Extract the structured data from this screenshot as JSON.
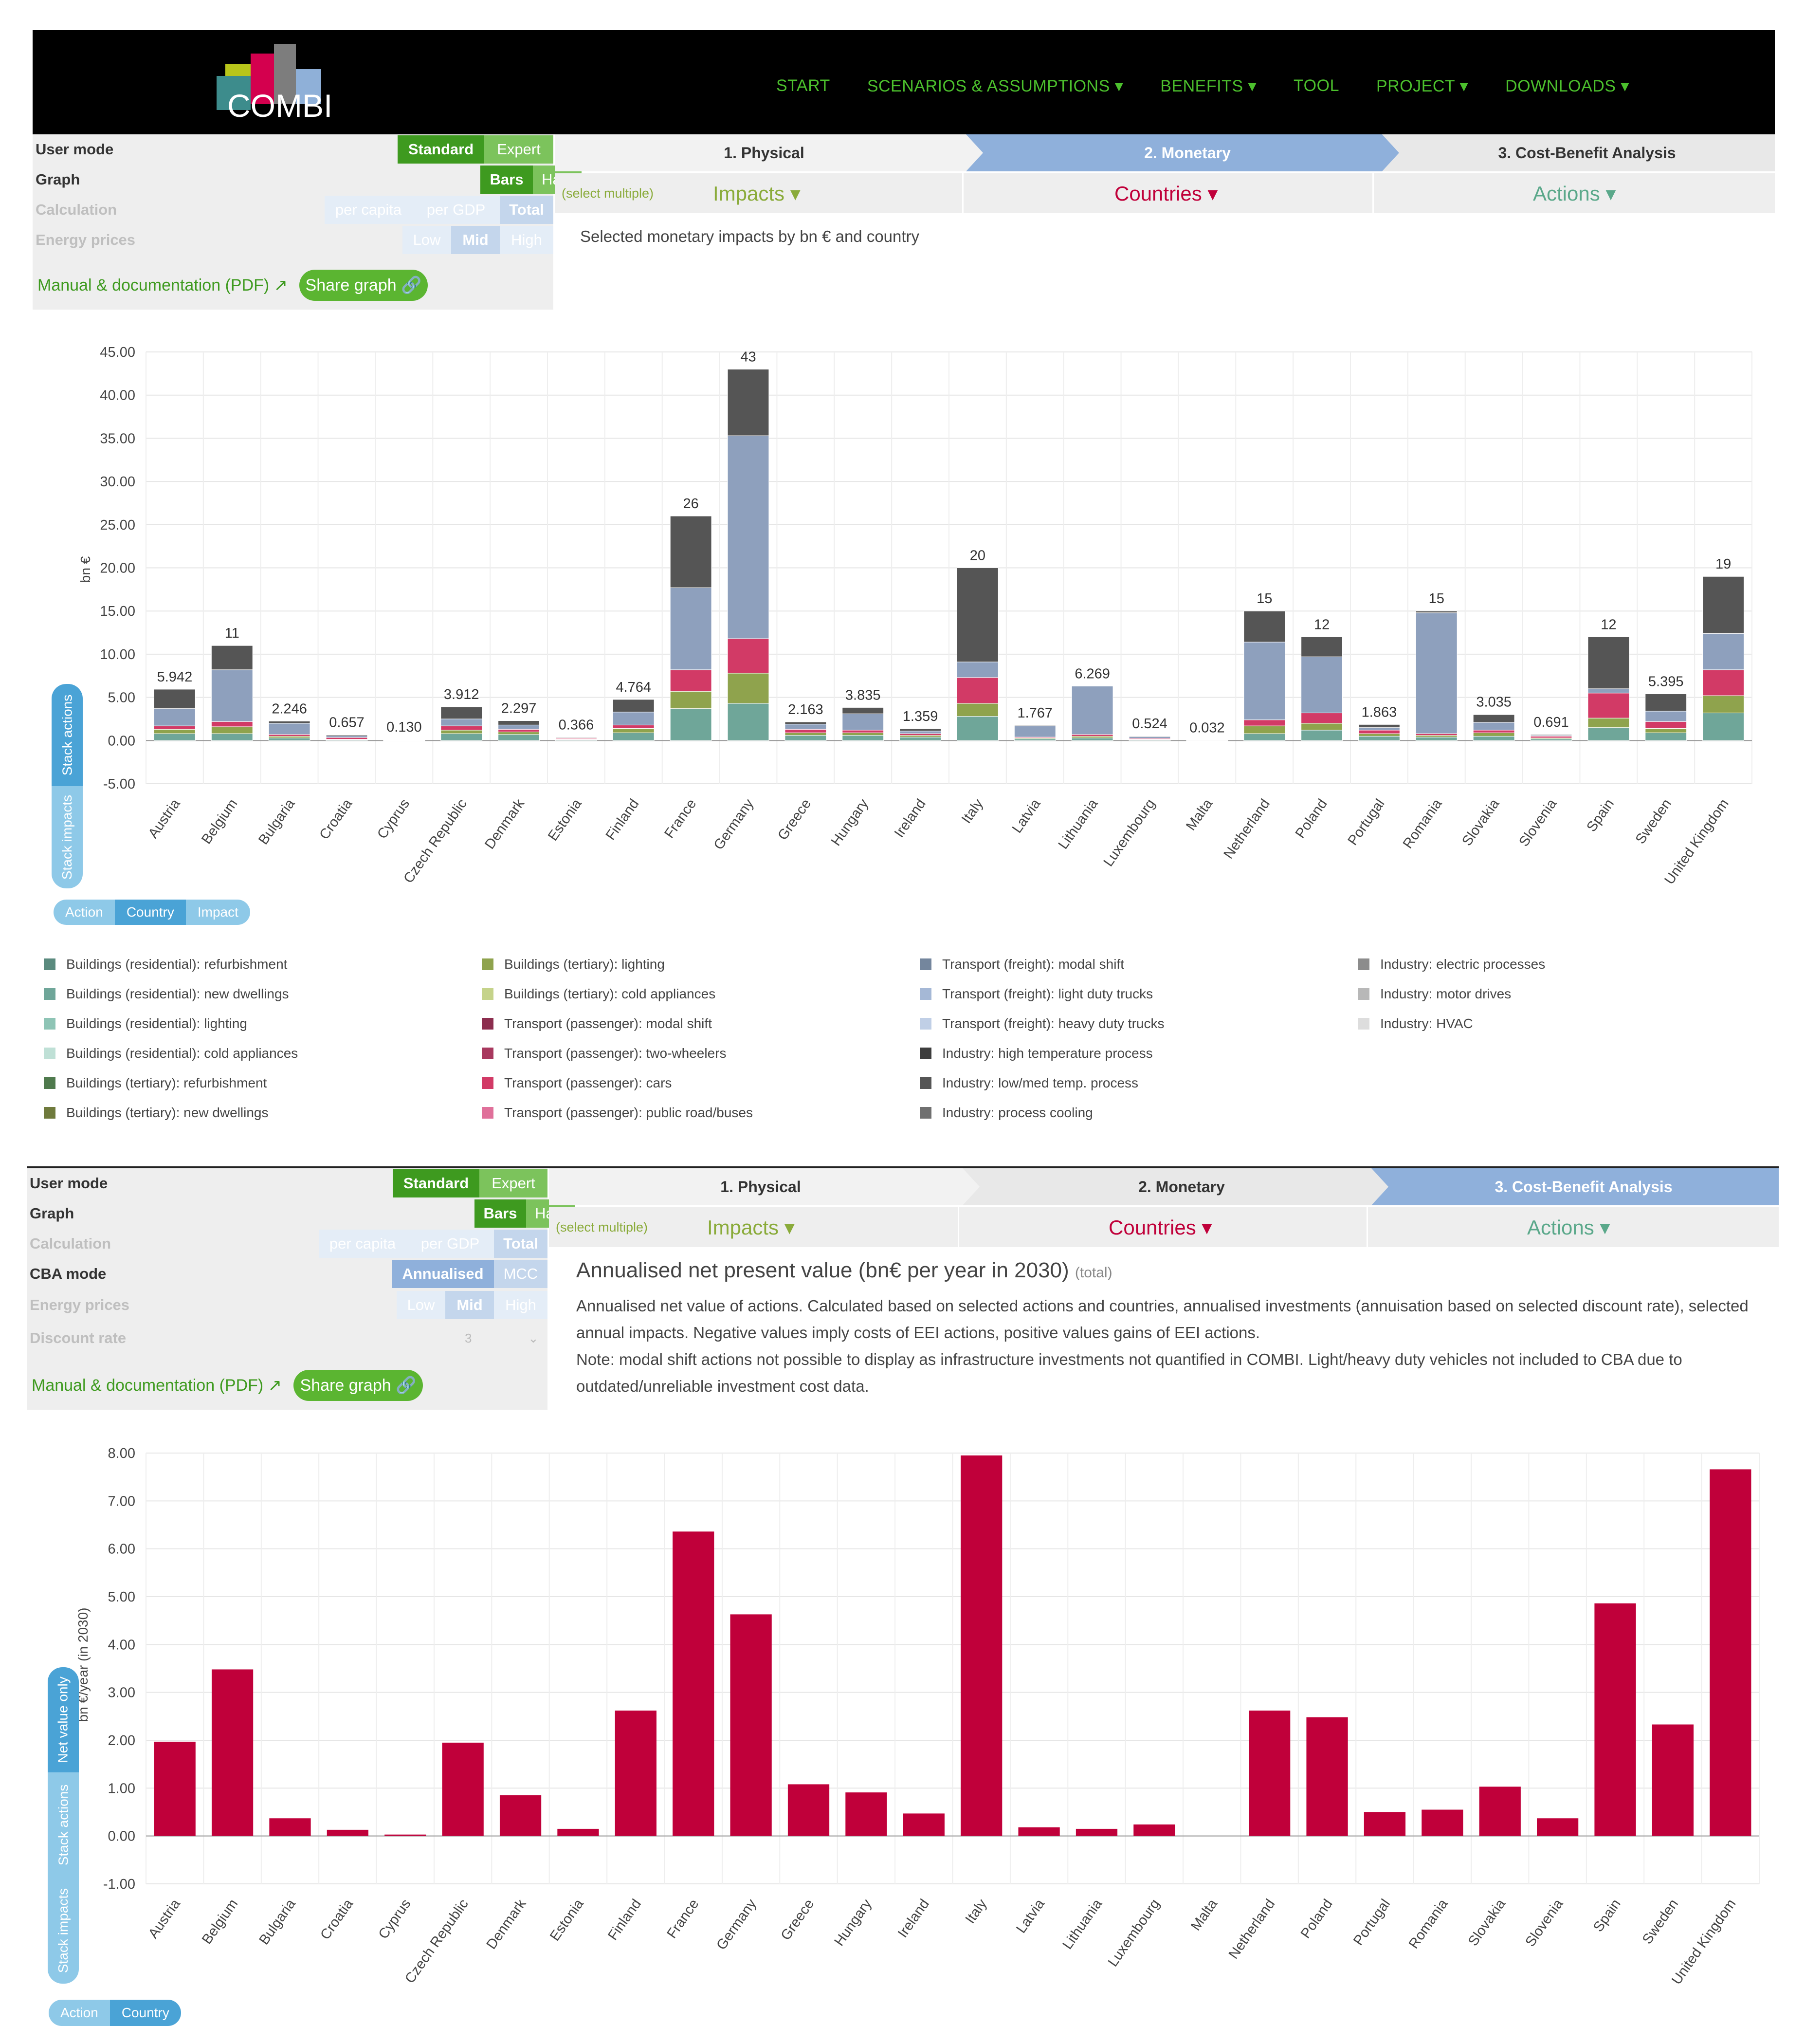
{
  "nav": {
    "logo": "COMBI",
    "menu": [
      "START",
      "SCENARIOS & ASSUMPTIONS ▾",
      "BENEFITS ▾",
      "TOOL",
      "PROJECT ▾",
      "DOWNLOADS ▾"
    ]
  },
  "panel1": {
    "user_mode_label": "User mode",
    "standard": "Standard",
    "expert": "Expert",
    "graph_label": "Graph",
    "bars": "Bars",
    "halo": "Halo",
    "calculation_label": "Calculation",
    "per_capita": "per capita",
    "per_gdp": "per GDP",
    "total": "Total",
    "energy_label": "Energy prices",
    "low": "Low",
    "mid": "Mid",
    "high": "High",
    "manual": "Manual & documentation (PDF)",
    "share": "Share graph",
    "tabs": [
      "1. Physical",
      "2. Monetary",
      "3. Cost-Benefit Analysis"
    ],
    "select_multiple": "(select multiple)",
    "impacts": "Impacts ▾",
    "countries": "Countries ▾",
    "actions": "Actions ▾",
    "subtitle": "Selected monetary impacts by bn € and country",
    "ylabel": "bn €",
    "stack_actions": "Stack actions",
    "stack_impacts": "Stack impacts",
    "group": [
      "Action",
      "Country",
      "Impact"
    ]
  },
  "legend": [
    [
      "Buildings (residential): refurbishment",
      "Buildings (residential): new dwellings",
      "Buildings (residential): lighting",
      "Buildings (residential): cold appliances",
      "Buildings (tertiary): refurbishment",
      "Buildings (tertiary): new dwellings"
    ],
    [
      "Buildings (tertiary): lighting",
      "Buildings (tertiary): cold appliances",
      "Transport (passenger): modal shift",
      "Transport (passenger): two-wheelers",
      "Transport (passenger): cars",
      "Transport (passenger): public road/buses"
    ],
    [
      "Transport (freight): modal shift",
      "Transport (freight): light duty trucks",
      "Transport (freight): heavy duty trucks",
      "Industry: high temperature process",
      "Industry: low/med temp. process",
      "Industry: process cooling"
    ],
    [
      "Industry: electric processes",
      "Industry: motor drives",
      "Industry: HVAC"
    ]
  ],
  "legend_colors": [
    [
      "#5a8a7e",
      "#6fa699",
      "#8ec4b5",
      "#bfe0d6",
      "#4f7a4d",
      "#6f7a3c"
    ],
    [
      "#8fa34d",
      "#c5d38a",
      "#8c2d4e",
      "#a8385e",
      "#d23a66",
      "#e0709a"
    ],
    [
      "#74869d",
      "#a5b8d6",
      "#c0cfe6",
      "#3d3d3d",
      "#555555",
      "#707070"
    ],
    [
      "#8c8c8c",
      "#b8b8b8",
      "#dddddd"
    ]
  ],
  "panel2": {
    "user_mode_label": "User mode",
    "standard": "Standard",
    "expert": "Expert",
    "graph_label": "Graph",
    "bars": "Bars",
    "halo": "Halo",
    "calculation_label": "Calculation",
    "per_capita": "per capita",
    "per_gdp": "per GDP",
    "total": "Total",
    "cba_label": "CBA mode",
    "annualised": "Annualised",
    "mcc": "MCC",
    "energy_label": "Energy prices",
    "low": "Low",
    "mid": "Mid",
    "high": "High",
    "discount_label": "Discount rate",
    "discount_value": "3",
    "manual": "Manual & documentation (PDF)",
    "share": "Share graph",
    "tabs": [
      "1. Physical",
      "2. Monetary",
      "3. Cost-Benefit Analysis"
    ],
    "select_multiple": "(select multiple)",
    "impacts": "Impacts ▾",
    "countries": "Countries ▾",
    "actions": "Actions ▾",
    "title": "Annualised net present value (bn€ per year in 2030)",
    "title_suffix": "(total)",
    "desc1": "Annualised net value of actions. Calculated based on selected actions and countries, annualised investments (annuisation based on selected discount rate), selected annual impacts. Negative values imply costs of EEI actions, positive values gains of EEI actions.",
    "desc2": "Note: modal shift actions not possible to display as infrastructure investments not quantified in COMBI. Light/heavy duty vehicles not included to CBA due to outdated/unreliable investment cost data.",
    "ylabel": "bn €/year (in 2030)",
    "net_value_only": "Net value only",
    "stack_actions": "Stack actions",
    "stack_impacts": "Stack impacts",
    "group": [
      "Action",
      "Country"
    ]
  },
  "chart_data": [
    {
      "type": "bar",
      "stacked": true,
      "title": "Selected monetary impacts by bn € and country",
      "ylabel": "bn €",
      "ylim": [
        -5,
        45
      ],
      "yticks": [
        "45.00",
        "40.00",
        "35.00",
        "30.00",
        "25.00",
        "20.00",
        "15.00",
        "10.00",
        "5.00",
        "0.00",
        "-5.00"
      ],
      "categories": [
        "Austria",
        "Belgium",
        "Bulgaria",
        "Croatia",
        "Cyprus",
        "Czech Republic",
        "Denmark",
        "Estonia",
        "Finland",
        "France",
        "Germany",
        "Greece",
        "Hungary",
        "Ireland",
        "Italy",
        "Latvia",
        "Lithuania",
        "Luxembourg",
        "Malta",
        "Netherland",
        "Poland",
        "Portugal",
        "Romania",
        "Slovakia",
        "Slovenia",
        "Spain",
        "Sweden",
        "United Kingdom"
      ],
      "totals": [
        5.942,
        11,
        2.246,
        0.657,
        0.13,
        3.912,
        2.297,
        0.366,
        4.764,
        26,
        43,
        2.163,
        3.835,
        1.359,
        20,
        1.767,
        6.269,
        0.524,
        0.032,
        15,
        12,
        1.863,
        15,
        3.035,
        0.691,
        12,
        5.395,
        19
      ],
      "total_labels": [
        "5.942",
        "11",
        "2.246",
        "0.657",
        "0.130",
        "3.912",
        "2.297",
        "0.366",
        "4.764",
        "26",
        "43",
        "2.163",
        "3.835",
        "1.359",
        "20",
        "1.767",
        "6.269",
        "0.524",
        "0.032",
        "15",
        "12",
        "1.863",
        "15",
        "3.035",
        "0.691",
        "12",
        "5.395",
        "19"
      ],
      "series": [
        {
          "name": "Buildings (residential)",
          "values": [
            0.8,
            0.8,
            0.3,
            0.1,
            0.02,
            0.8,
            0.7,
            0.1,
            0.9,
            3.7,
            4.3,
            0.6,
            0.6,
            0.4,
            2.8,
            0.2,
            0.3,
            0.1,
            0.01,
            0.8,
            1.2,
            0.5,
            0.4,
            0.5,
            0.2,
            1.5,
            0.9,
            3.2
          ]
        },
        {
          "name": "Buildings (tertiary)",
          "values": [
            0.5,
            0.8,
            0.2,
            0.05,
            0.02,
            0.4,
            0.3,
            0.05,
            0.5,
            2.0,
            3.5,
            0.3,
            0.3,
            0.2,
            1.5,
            0.1,
            0.2,
            0.05,
            0.01,
            0.9,
            0.8,
            0.3,
            0.2,
            0.4,
            0.1,
            1.1,
            0.5,
            2.0
          ]
        },
        {
          "name": "Transport (passenger)",
          "values": [
            0.4,
            0.6,
            0.2,
            0.2,
            0.03,
            0.5,
            0.3,
            0.1,
            0.4,
            2.5,
            4.0,
            0.4,
            0.3,
            0.2,
            3.0,
            0.1,
            0.2,
            0.1,
            0.01,
            0.7,
            1.2,
            0.4,
            0.2,
            0.3,
            0.2,
            2.9,
            0.8,
            3.0
          ]
        },
        {
          "name": "Transport (freight)",
          "values": [
            2.0,
            6.0,
            1.3,
            0.2,
            0.03,
            0.8,
            0.5,
            0.05,
            1.5,
            9.5,
            23.5,
            0.6,
            1.9,
            0.3,
            1.8,
            1.3,
            5.6,
            0.2,
            0,
            9.0,
            6.5,
            0.3,
            14.0,
            0.9,
            0.1,
            0.5,
            1.2,
            4.2
          ]
        },
        {
          "name": "Industry",
          "values": [
            2.24,
            2.8,
            0.25,
            0.11,
            0.02,
            1.41,
            0.5,
            0.07,
            1.46,
            8.3,
            7.7,
            0.26,
            0.73,
            0.26,
            10.9,
            0.07,
            0,
            0.07,
            0,
            3.6,
            2.3,
            0.36,
            0.2,
            0.9,
            0.09,
            6.0,
            2.0,
            6.6
          ]
        }
      ],
      "series_colors": [
        "#6fa699",
        "#8fa34d",
        "#d23a66",
        "#8ea0bd",
        "#555555"
      ]
    },
    {
      "type": "bar",
      "title": "Annualised net present value (bn€ per year in 2030)",
      "ylabel": "bn €/year (in 2030)",
      "ylim": [
        -1,
        8
      ],
      "yticks": [
        "8.00",
        "7.00",
        "6.00",
        "5.00",
        "4.00",
        "3.00",
        "2.00",
        "1.00",
        "0.00",
        "-1.00"
      ],
      "categories": [
        "Austria",
        "Belgium",
        "Bulgaria",
        "Croatia",
        "Cyprus",
        "Czech Republic",
        "Denmark",
        "Estonia",
        "Finland",
        "France",
        "Germany",
        "Greece",
        "Hungary",
        "Ireland",
        "Italy",
        "Latvia",
        "Lithuania",
        "Luxembourg",
        "Malta",
        "Netherland",
        "Poland",
        "Portugal",
        "Romania",
        "Slovakia",
        "Slovenia",
        "Spain",
        "Sweden",
        "United Kingdom"
      ],
      "values": [
        1.97,
        3.48,
        0.37,
        0.13,
        0.03,
        1.95,
        0.85,
        0.15,
        2.62,
        6.36,
        4.63,
        1.08,
        0.91,
        0.47,
        7.95,
        0.18,
        0.15,
        0.24,
        0,
        2.62,
        2.48,
        0.5,
        0.55,
        1.03,
        0.37,
        4.86,
        2.33,
        7.66
      ],
      "color": "#c0003a"
    }
  ]
}
